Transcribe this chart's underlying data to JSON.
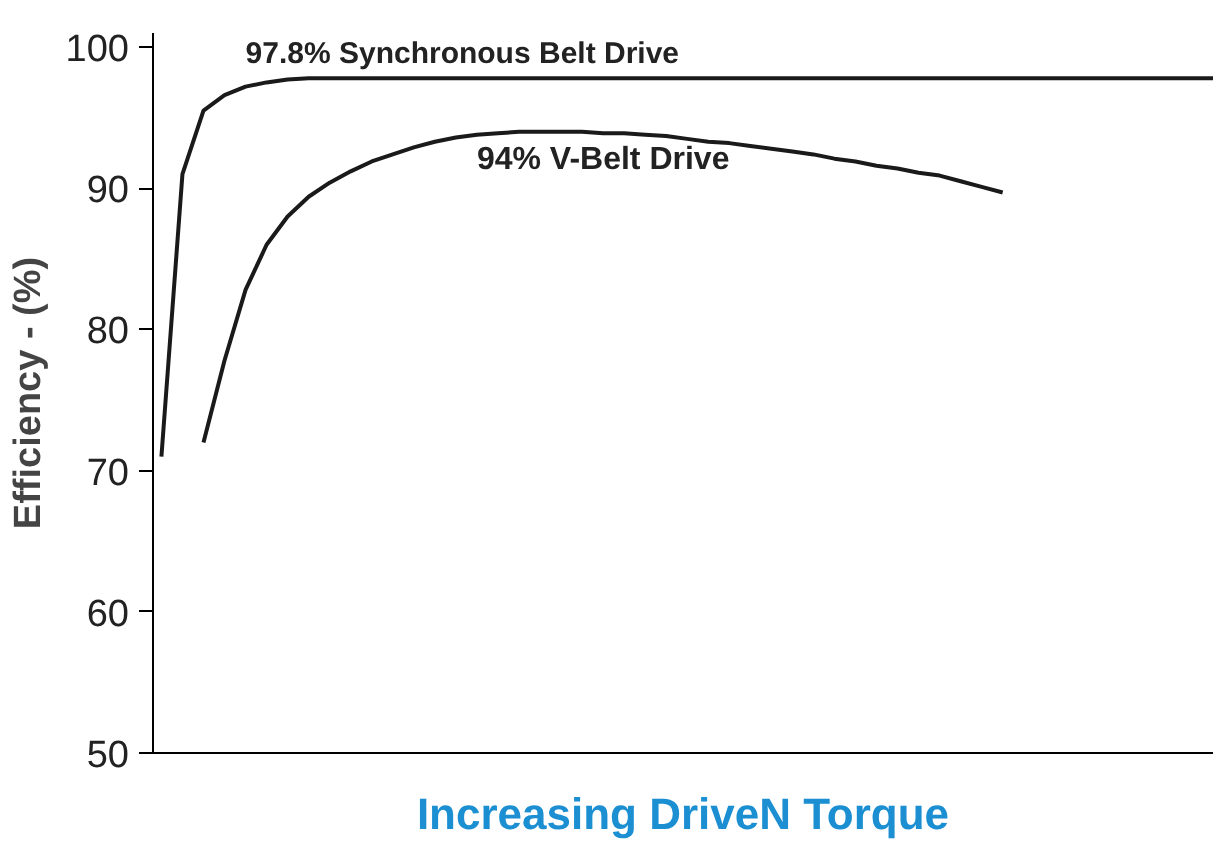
{
  "chart_data": {
    "type": "line",
    "xlabel": "Increasing DriveN Torque",
    "ylabel": "Efficiency - (%)",
    "categories": [
      null,
      null,
      null,
      null,
      null,
      null,
      null,
      null,
      null,
      null,
      null,
      null,
      null,
      null,
      null,
      null,
      null,
      null,
      null,
      null,
      null,
      null,
      null,
      null,
      null,
      null,
      null,
      null,
      null,
      null,
      null,
      null,
      null,
      null,
      null,
      null,
      null,
      null,
      null,
      null,
      null,
      null,
      null,
      null,
      null,
      null,
      null,
      null,
      null,
      null,
      null
    ],
    "series": [
      {
        "name": "97.8% Synchronous Belt Drive",
        "color": "#1a1a1a",
        "values": [
          71,
          91,
          95.5,
          96.6,
          97.2,
          97.5,
          97.7,
          97.8,
          97.8,
          97.8,
          97.8,
          97.8,
          97.8,
          97.8,
          97.8,
          97.8,
          97.8,
          97.8,
          97.8,
          97.8,
          97.8,
          97.8,
          97.8,
          97.8,
          97.8,
          97.8,
          97.8,
          97.8,
          97.8,
          97.8,
          97.8,
          97.8,
          97.8,
          97.8,
          97.8,
          97.8,
          97.8,
          97.8,
          97.8,
          97.8,
          97.8,
          97.8,
          97.8,
          97.8,
          97.8,
          97.8,
          97.8,
          97.8,
          97.8,
          97.8,
          97.8
        ]
      },
      {
        "name": "94% V-Belt Drive",
        "color": "#1a1a1a",
        "values": [
          null,
          null,
          72,
          77.8,
          82.8,
          86,
          88,
          89.4,
          90.4,
          91.2,
          91.9,
          92.4,
          92.9,
          93.3,
          93.6,
          93.8,
          93.9,
          94,
          94,
          94,
          94,
          93.9,
          93.9,
          93.8,
          93.7,
          93.5,
          93.3,
          93.2,
          93,
          92.8,
          92.6,
          92.4,
          92.1,
          91.9,
          91.6,
          91.4,
          91.1,
          90.9,
          90.5,
          90.1,
          89.7,
          null,
          null,
          null,
          null,
          null,
          null,
          null,
          null,
          null,
          null
        ]
      }
    ],
    "ylim": [
      50,
      101
    ],
    "yticks": [
      50,
      60,
      70,
      80,
      90,
      100
    ],
    "grid": false,
    "legend": false,
    "marker": "none",
    "line_style": "solid"
  }
}
